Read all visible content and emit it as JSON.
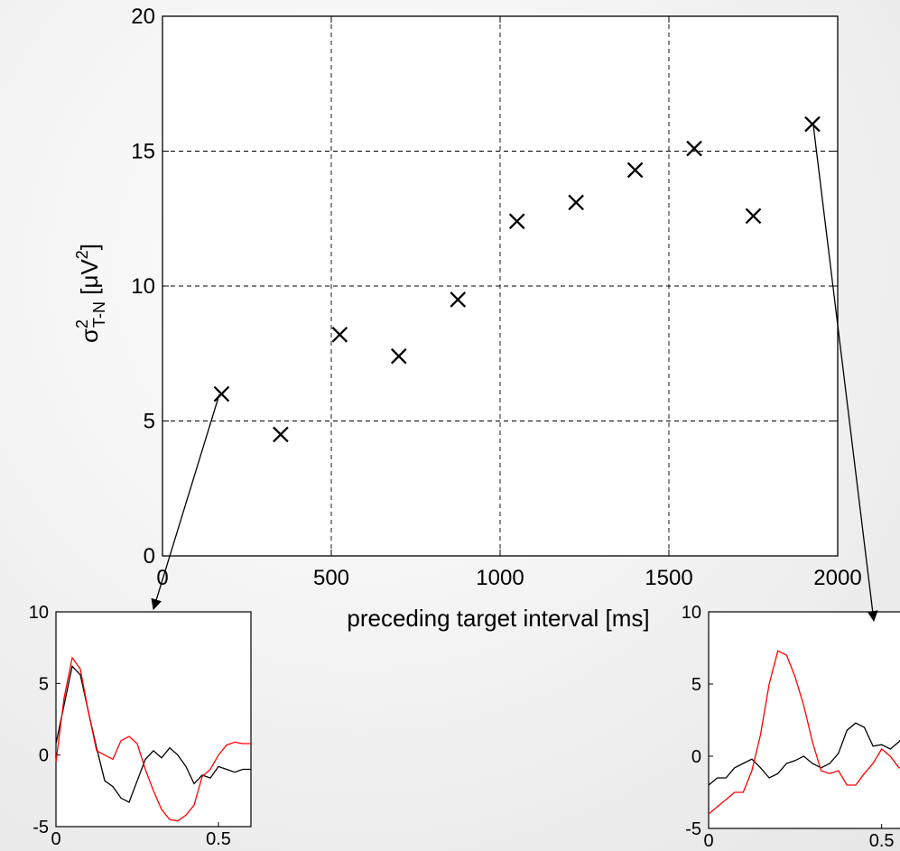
{
  "chart_data": [
    {
      "type": "scatter",
      "title": "",
      "xlabel": "preceding target interval [ms]",
      "ylabel": {
        "symbol": "σ",
        "superscript": "2",
        "subscript": "T-N",
        "unit_open": " [μV",
        "unit_sup": "2",
        "unit_close": "]"
      },
      "xlim": [
        0,
        2000
      ],
      "ylim": [
        0,
        20
      ],
      "xticks": [
        0,
        500,
        1000,
        1500,
        2000
      ],
      "yticks": [
        0,
        5,
        10,
        15,
        20
      ],
      "grid": true,
      "marker": "x",
      "marker_color": "#000000",
      "x": [
        175,
        350,
        525,
        700,
        875,
        1050,
        1225,
        1400,
        1575,
        1750,
        1925
      ],
      "y": [
        6.0,
        4.5,
        8.2,
        7.4,
        9.5,
        12.4,
        13.1,
        14.3,
        15.1,
        12.6,
        16.0
      ]
    },
    {
      "type": "line",
      "xlim": [
        0,
        0.6
      ],
      "ylim": [
        -5,
        10
      ],
      "xticks": [
        0,
        0.5
      ],
      "yticks": [
        -5,
        0,
        5,
        10
      ],
      "grid": false,
      "x": [
        0.0,
        0.025,
        0.05,
        0.075,
        0.1,
        0.125,
        0.15,
        0.175,
        0.2,
        0.225,
        0.25,
        0.275,
        0.3,
        0.325,
        0.35,
        0.375,
        0.4,
        0.425,
        0.45,
        0.475,
        0.5,
        0.525,
        0.55,
        0.575,
        0.6
      ],
      "series": [
        {
          "color": "#000000",
          "values": [
            0.8,
            3.5,
            6.2,
            5.6,
            3.0,
            0.5,
            -1.8,
            -2.2,
            -3.0,
            -3.3,
            -1.8,
            -0.3,
            0.3,
            -0.2,
            0.5,
            0.0,
            -0.8,
            -2.0,
            -1.4,
            -1.6,
            -0.8,
            -1.0,
            -1.2,
            -1.0,
            -1.0
          ]
        },
        {
          "color": "#ff0000",
          "values": [
            -0.5,
            4.0,
            6.8,
            6.0,
            3.0,
            0.3,
            0.0,
            -0.3,
            1.0,
            1.3,
            0.8,
            -1.0,
            -2.5,
            -3.8,
            -4.5,
            -4.6,
            -4.2,
            -3.5,
            -1.5,
            -1.0,
            0.0,
            0.7,
            0.9,
            0.8,
            0.8
          ]
        }
      ]
    },
    {
      "type": "line",
      "xlim": [
        0,
        0.6
      ],
      "ylim": [
        -5,
        10
      ],
      "xticks": [
        0,
        0.5
      ],
      "yticks": [
        -5,
        0,
        5,
        10
      ],
      "grid": false,
      "x": [
        0.0,
        0.025,
        0.05,
        0.075,
        0.1,
        0.125,
        0.15,
        0.175,
        0.2,
        0.225,
        0.25,
        0.275,
        0.3,
        0.325,
        0.35,
        0.375,
        0.4,
        0.425,
        0.45,
        0.475,
        0.5,
        0.525,
        0.55,
        0.575,
        0.6
      ],
      "series": [
        {
          "color": "#000000",
          "values": [
            -2.0,
            -1.5,
            -1.5,
            -0.8,
            -0.5,
            -0.2,
            -0.8,
            -1.5,
            -1.2,
            -0.5,
            -0.3,
            0.0,
            -0.5,
            -0.8,
            -0.5,
            0.2,
            1.8,
            2.3,
            2.0,
            0.7,
            0.8,
            0.5,
            1.0,
            1.8,
            2.0
          ]
        },
        {
          "color": "#ff0000",
          "values": [
            -4.0,
            -3.5,
            -3.0,
            -2.5,
            -2.5,
            -1.0,
            1.5,
            5.0,
            7.3,
            7.0,
            5.5,
            3.5,
            1.0,
            -1.0,
            -1.2,
            -1.0,
            -2.0,
            -2.0,
            -1.2,
            -0.5,
            0.5,
            0.0,
            -0.8,
            -0.8,
            -0.8
          ]
        }
      ]
    }
  ]
}
